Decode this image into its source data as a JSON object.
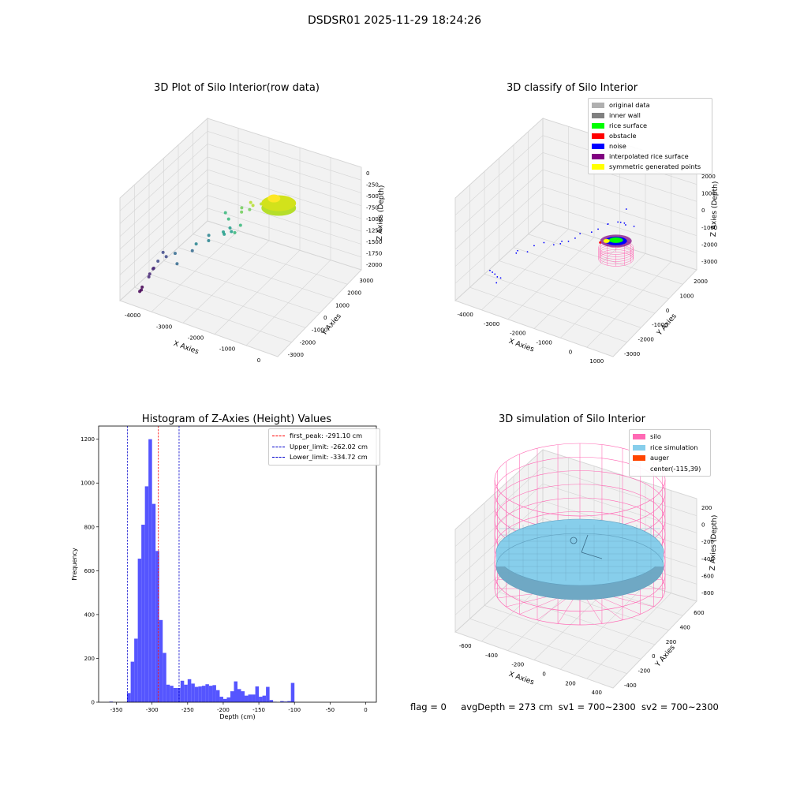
{
  "figure": {
    "title": "DSDSR01 2025-11-29 18:24:26",
    "status": {
      "flag": "flag = 0",
      "avg_depth": "avgDepth = 273 cm",
      "sv1": "sv1 = 700~2300",
      "sv2": "sv2 = 700~2300"
    }
  },
  "chart_data": [
    {
      "type": "scatter",
      "projection": "3d",
      "title": "3D Plot of Silo Interior(row data)",
      "xlabel": "X Axies",
      "ylabel": "Y Axies",
      "zlabel": "Z Axies (Depth)",
      "x_ticks": [
        "-4000",
        "-3000",
        "-2000",
        "-1000",
        "0"
      ],
      "y_ticks": [
        "-3000",
        "-2000",
        "-1000",
        "0",
        "1000",
        "2000",
        "3000"
      ],
      "z_ticks": [
        "-2000",
        "-1750",
        "-1500",
        "-1250",
        "-1000",
        "-750",
        "-500",
        "-250",
        "0"
      ],
      "colormap": "viridis",
      "grid": true
    },
    {
      "type": "scatter",
      "projection": "3d",
      "title": "3D classify of Silo Interior",
      "xlabel": "X Axies",
      "ylabel": "Y Axies",
      "zlabel": "Z Axies (Depth)",
      "x_ticks": [
        "-4000",
        "-3000",
        "-2000",
        "-1000",
        "0",
        "1000"
      ],
      "y_ticks": [
        "-3000",
        "-2000",
        "-1000",
        "0",
        "1000",
        "2000"
      ],
      "z_ticks": [
        "-3000",
        "-2000",
        "-1000",
        "0",
        "1000",
        "2000"
      ],
      "legend_position": "top-right",
      "legend": [
        {
          "name": "original data",
          "color": "#b0b0b0"
        },
        {
          "name": "inner wall",
          "color": "#808080"
        },
        {
          "name": "rice surface",
          "color": "#00ff00"
        },
        {
          "name": "obstacle",
          "color": "#ff0000"
        },
        {
          "name": "noise",
          "color": "#0000ff"
        },
        {
          "name": "interpolated rice surface",
          "color": "#800080"
        },
        {
          "name": "symmetric generated points",
          "color": "#ffff00"
        }
      ],
      "grid": true
    },
    {
      "type": "bar",
      "title": "Histogram of Z-Axies (Height) Values",
      "xlabel": "Depth (cm)",
      "ylabel": "Frequency",
      "xlim": [
        -375,
        15
      ],
      "ylim": [
        0,
        1260
      ],
      "x_ticks": [
        -350,
        -300,
        -250,
        -200,
        -150,
        -100,
        -50,
        0
      ],
      "y_ticks": [
        0,
        200,
        400,
        600,
        800,
        1000,
        1200
      ],
      "bin_width": 5,
      "bar_color": "#5555ff",
      "bins": [
        {
          "x": -360,
          "y": 3
        },
        {
          "x": -340,
          "y": 1
        },
        {
          "x": -335,
          "y": 42
        },
        {
          "x": -330,
          "y": 185
        },
        {
          "x": -325,
          "y": 290
        },
        {
          "x": -320,
          "y": 655
        },
        {
          "x": -315,
          "y": 810
        },
        {
          "x": -310,
          "y": 985
        },
        {
          "x": -305,
          "y": 1200
        },
        {
          "x": -300,
          "y": 905
        },
        {
          "x": -295,
          "y": 690
        },
        {
          "x": -290,
          "y": 375
        },
        {
          "x": -285,
          "y": 225
        },
        {
          "x": -280,
          "y": 80
        },
        {
          "x": -275,
          "y": 75
        },
        {
          "x": -270,
          "y": 65
        },
        {
          "x": -265,
          "y": 65
        },
        {
          "x": -260,
          "y": 98
        },
        {
          "x": -255,
          "y": 80
        },
        {
          "x": -250,
          "y": 105
        },
        {
          "x": -245,
          "y": 85
        },
        {
          "x": -240,
          "y": 70
        },
        {
          "x": -235,
          "y": 72
        },
        {
          "x": -230,
          "y": 75
        },
        {
          "x": -225,
          "y": 82
        },
        {
          "x": -220,
          "y": 75
        },
        {
          "x": -215,
          "y": 78
        },
        {
          "x": -210,
          "y": 55
        },
        {
          "x": -205,
          "y": 25
        },
        {
          "x": -200,
          "y": 15
        },
        {
          "x": -195,
          "y": 22
        },
        {
          "x": -190,
          "y": 50
        },
        {
          "x": -185,
          "y": 95
        },
        {
          "x": -180,
          "y": 60
        },
        {
          "x": -175,
          "y": 50
        },
        {
          "x": -170,
          "y": 30
        },
        {
          "x": -165,
          "y": 35
        },
        {
          "x": -160,
          "y": 35
        },
        {
          "x": -155,
          "y": 72
        },
        {
          "x": -150,
          "y": 25
        },
        {
          "x": -145,
          "y": 30
        },
        {
          "x": -140,
          "y": 70
        },
        {
          "x": -135,
          "y": 10
        },
        {
          "x": -130,
          "y": 2
        },
        {
          "x": -120,
          "y": 5
        },
        {
          "x": -115,
          "y": 3
        },
        {
          "x": -110,
          "y": 5
        },
        {
          "x": -105,
          "y": 88
        }
      ],
      "vlines": [
        {
          "label": "first_peak: -291.10 cm",
          "x": -291.1,
          "color": "#ff0000"
        },
        {
          "label": "Upper_limit: -262.02 cm",
          "x": -262.02,
          "color": "#0000cc"
        },
        {
          "label": "Lower_limit: -334.72 cm",
          "x": -334.72,
          "color": "#0000cc"
        }
      ],
      "legend_position": "top-right"
    },
    {
      "type": "surface",
      "projection": "3d",
      "title": "3D simulation of Silo Interior",
      "xlabel": "X Axies",
      "ylabel": "Y Axies",
      "zlabel": "Z Axies (Depth)",
      "x_ticks": [
        "-600",
        "-400",
        "-200",
        "0",
        "200",
        "400"
      ],
      "y_ticks": [
        "-400",
        "-200",
        "0",
        "200",
        "400",
        "600"
      ],
      "z_ticks": [
        "-800",
        "-600",
        "-400",
        "-200",
        "0",
        "200"
      ],
      "legend_position": "top-right",
      "legend": [
        {
          "name": "silo",
          "color": "#ff69b4"
        },
        {
          "name": "rice simulation",
          "color": "#87ceeb"
        },
        {
          "name": "auger",
          "color": "#ff4500"
        },
        {
          "name": "center(-115,39)",
          "color": ""
        }
      ],
      "grid": true
    }
  ]
}
